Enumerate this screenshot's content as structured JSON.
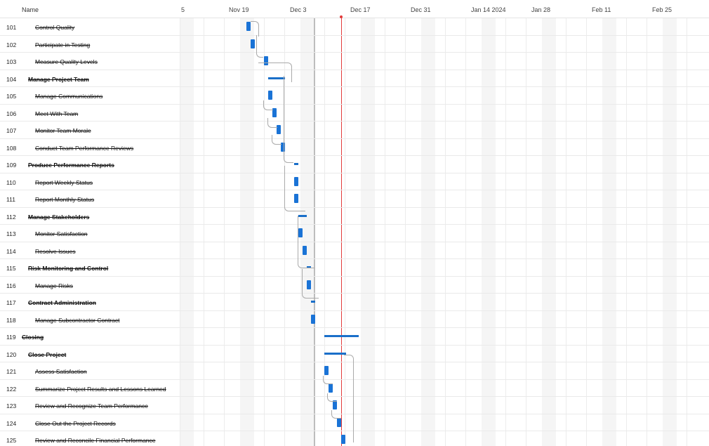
{
  "header": {
    "name_label": "Name",
    "dates": [
      "5",
      "Nov 19",
      "Dec 3",
      "Dec 17",
      "Dec 31",
      "Jan 14 2024",
      "Jan 28",
      "Feb 11",
      "Feb 25"
    ]
  },
  "tasks": [
    {
      "id": "101",
      "name": "Control Quality",
      "level": 2
    },
    {
      "id": "102",
      "name": "Participate in Testing",
      "level": 2
    },
    {
      "id": "103",
      "name": "Measure Quality Levels",
      "level": 2
    },
    {
      "id": "104",
      "name": "Manage Project Team",
      "level": 1
    },
    {
      "id": "105",
      "name": "Manage Communications",
      "level": 2
    },
    {
      "id": "106",
      "name": "Meet With Team",
      "level": 2
    },
    {
      "id": "107",
      "name": "Monitor Team Morale",
      "level": 2
    },
    {
      "id": "108",
      "name": "Conduct Team Performance Reviews",
      "level": 2
    },
    {
      "id": "109",
      "name": "Produce Performance Reports",
      "level": 1
    },
    {
      "id": "110",
      "name": "Report Weekly Status",
      "level": 2
    },
    {
      "id": "111",
      "name": "Report Monthly Status",
      "level": 2
    },
    {
      "id": "112",
      "name": "Manage Stakeholders",
      "level": 1
    },
    {
      "id": "113",
      "name": "Monitor Satisfaction",
      "level": 2
    },
    {
      "id": "114",
      "name": "Resolve Issues",
      "level": 2
    },
    {
      "id": "115",
      "name": "Risk Monitoring and Control",
      "level": 1
    },
    {
      "id": "116",
      "name": "Manage Risks",
      "level": 2
    },
    {
      "id": "117",
      "name": "Contract Administration",
      "level": 1
    },
    {
      "id": "118",
      "name": "Manage Subcontractor Contract",
      "level": 2
    },
    {
      "id": "119",
      "name": "Closing",
      "level": 0
    },
    {
      "id": "120",
      "name": "Close Project",
      "level": 1
    },
    {
      "id": "121",
      "name": "Assess Satisfaction",
      "level": 2
    },
    {
      "id": "122",
      "name": "Summarize Project Results and Lessons Learned",
      "level": 2
    },
    {
      "id": "123",
      "name": "Review and Recognize Team Performance",
      "level": 2
    },
    {
      "id": "124",
      "name": "Close Out the Project Records",
      "level": 2
    },
    {
      "id": "125",
      "name": "Review and Reconcile Financial Performance",
      "level": 2
    }
  ],
  "colors": {
    "bar": "#1a73d6",
    "summary": "#1a6fc9",
    "today_line": "#e23b3b"
  }
}
